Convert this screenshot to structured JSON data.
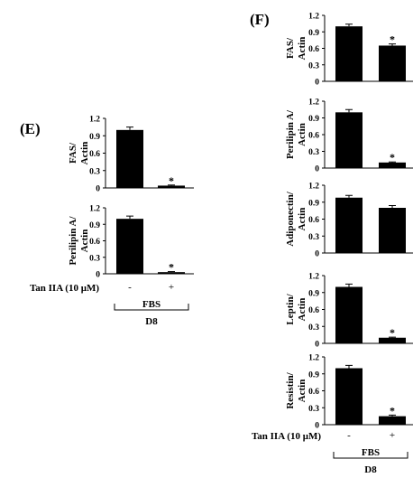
{
  "panels": [
    {
      "letter": "(E)",
      "treatment_label": "Tan IIA  (10 μM)",
      "signs": [
        "-",
        "+"
      ],
      "group_label": "FBS",
      "day_label": "D8"
    },
    {
      "letter": "(F)",
      "treatment_label": "Tan IIA  (10 μM)",
      "signs": [
        "-",
        "+"
      ],
      "group_label": "FBS",
      "day_label": "D8"
    }
  ],
  "chart_data": [
    {
      "type": "bar",
      "panel": "E",
      "ylabel": [
        "FAS/",
        "Actin"
      ],
      "categories": [
        "-",
        "+"
      ],
      "values": [
        1.0,
        0.04
      ],
      "errors": [
        0.05,
        0.01
      ],
      "significance": [
        "",
        "*"
      ],
      "ylim": [
        0,
        1.2
      ],
      "yticks": [
        "0",
        "0.3",
        "0.6",
        "0.9",
        "1.2"
      ],
      "bar_color": "#000000"
    },
    {
      "type": "bar",
      "panel": "E",
      "ylabel": [
        "Perilipin A/",
        "Actin"
      ],
      "categories": [
        "-",
        "+"
      ],
      "values": [
        1.0,
        0.03
      ],
      "errors": [
        0.05,
        0.01
      ],
      "significance": [
        "",
        "*"
      ],
      "ylim": [
        0,
        1.2
      ],
      "yticks": [
        "0",
        "0.3",
        "0.6",
        "0.9",
        "1.2"
      ],
      "bar_color": "#000000"
    },
    {
      "type": "bar",
      "panel": "F",
      "ylabel": [
        "FAS/",
        "Actin"
      ],
      "categories": [
        "-",
        "+"
      ],
      "values": [
        1.0,
        0.65
      ],
      "errors": [
        0.04,
        0.03
      ],
      "significance": [
        "",
        "*"
      ],
      "ylim": [
        0,
        1.2
      ],
      "yticks": [
        "0",
        "0.3",
        "0.6",
        "0.9",
        "1.2"
      ],
      "bar_color": "#000000"
    },
    {
      "type": "bar",
      "panel": "F",
      "ylabel": [
        "Perilipin A/",
        "Actin"
      ],
      "categories": [
        "-",
        "+"
      ],
      "values": [
        1.0,
        0.1
      ],
      "errors": [
        0.05,
        0.01
      ],
      "significance": [
        "",
        "*"
      ],
      "ylim": [
        0,
        1.2
      ],
      "yticks": [
        "0",
        "0.3",
        "0.6",
        "0.9",
        "1.2"
      ],
      "bar_color": "#000000"
    },
    {
      "type": "bar",
      "panel": "F",
      "ylabel": [
        "Adiponectin/",
        "Actin"
      ],
      "categories": [
        "-",
        "+"
      ],
      "values": [
        0.98,
        0.8
      ],
      "errors": [
        0.04,
        0.04
      ],
      "significance": [
        "",
        ""
      ],
      "ylim": [
        0,
        1.2
      ],
      "yticks": [
        "0",
        "0.3",
        "0.6",
        "0.9",
        "1.2"
      ],
      "bar_color": "#000000"
    },
    {
      "type": "bar",
      "panel": "F",
      "ylabel": [
        "Leptin/",
        "Actin"
      ],
      "categories": [
        "-",
        "+"
      ],
      "values": [
        1.0,
        0.1
      ],
      "errors": [
        0.05,
        0.01
      ],
      "significance": [
        "",
        "*"
      ],
      "ylim": [
        0,
        1.2
      ],
      "yticks": [
        "0",
        "0.3",
        "0.6",
        "0.9",
        "1.2"
      ],
      "bar_color": "#000000"
    },
    {
      "type": "bar",
      "panel": "F",
      "ylabel": [
        "Resistin/",
        "Actin"
      ],
      "categories": [
        "-",
        "+"
      ],
      "values": [
        1.0,
        0.15
      ],
      "errors": [
        0.05,
        0.02
      ],
      "significance": [
        "",
        "*"
      ],
      "ylim": [
        0,
        1.2
      ],
      "yticks": [
        "0",
        "0.3",
        "0.6",
        "0.9",
        "1.2"
      ],
      "bar_color": "#000000"
    }
  ]
}
